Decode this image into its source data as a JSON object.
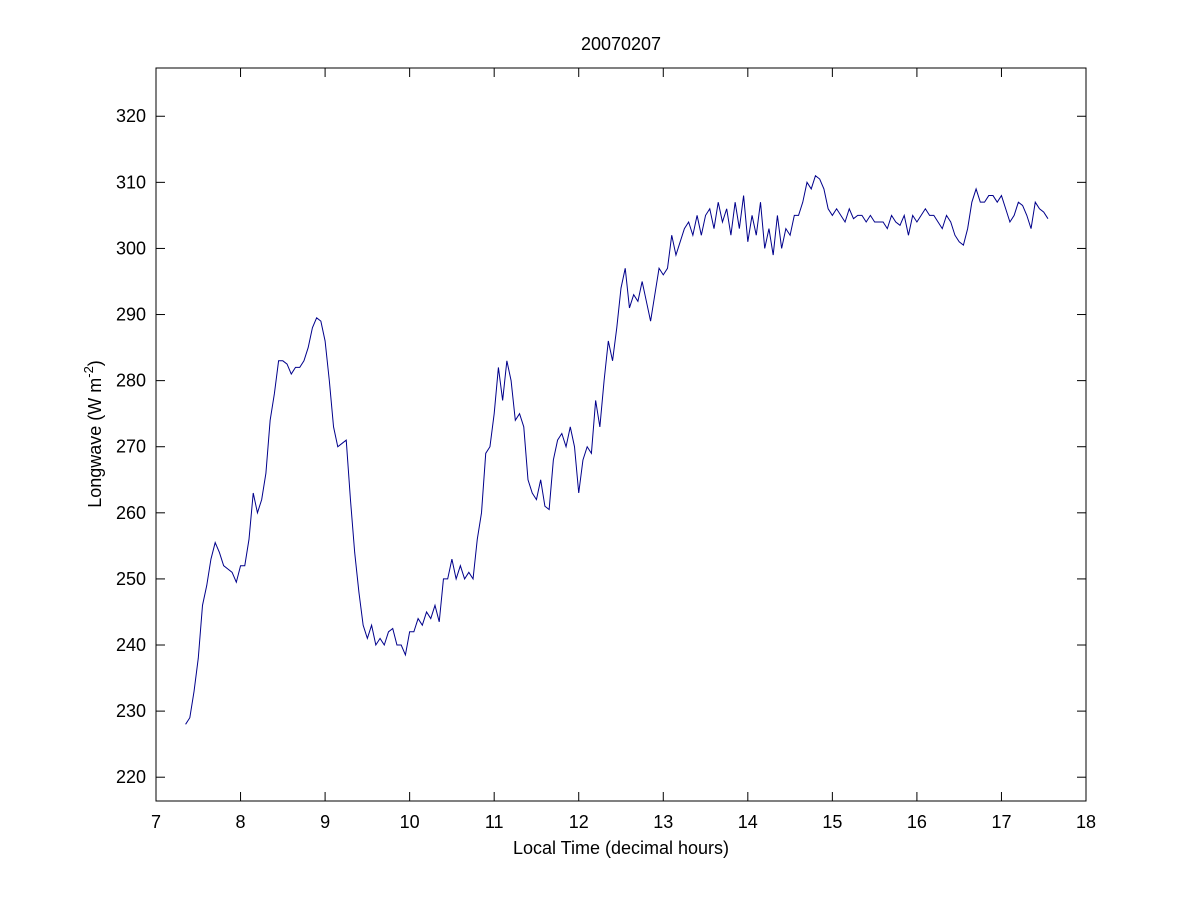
{
  "chart_data": {
    "type": "line",
    "title": "20070207",
    "xlabel": "Local Time (decimal hours)",
    "ylabel": {
      "text": "Longwave (W m",
      "superscript": "-2",
      "suffix": ")"
    },
    "color": "#00008b",
    "xlim": [
      7,
      18
    ],
    "xticks": [
      7,
      8,
      9,
      10,
      11,
      12,
      13,
      14,
      15,
      16,
      17,
      18
    ],
    "ylim": [
      216.4,
      327.3
    ],
    "yticks": [
      220,
      230,
      240,
      250,
      260,
      270,
      280,
      290,
      300,
      310,
      320
    ],
    "grid": false,
    "x": [
      7.35,
      7.4,
      7.45,
      7.5,
      7.55,
      7.6,
      7.65,
      7.7,
      7.75,
      7.8,
      7.85,
      7.9,
      7.95,
      8.0,
      8.05,
      8.1,
      8.15,
      8.2,
      8.25,
      8.3,
      8.35,
      8.4,
      8.45,
      8.5,
      8.55,
      8.6,
      8.65,
      8.7,
      8.75,
      8.8,
      8.85,
      8.9,
      8.95,
      9.0,
      9.05,
      9.1,
      9.15,
      9.2,
      9.25,
      9.3,
      9.35,
      9.4,
      9.45,
      9.5,
      9.55,
      9.6,
      9.65,
      9.7,
      9.75,
      9.8,
      9.85,
      9.9,
      9.95,
      10.0,
      10.05,
      10.1,
      10.15,
      10.2,
      10.25,
      10.3,
      10.35,
      10.4,
      10.45,
      10.5,
      10.55,
      10.6,
      10.65,
      10.7,
      10.75,
      10.8,
      10.85,
      10.9,
      10.95,
      11.0,
      11.05,
      11.1,
      11.15,
      11.2,
      11.25,
      11.3,
      11.35,
      11.4,
      11.45,
      11.5,
      11.55,
      11.6,
      11.65,
      11.7,
      11.75,
      11.8,
      11.85,
      11.9,
      11.95,
      12.0,
      12.05,
      12.1,
      12.15,
      12.2,
      12.25,
      12.3,
      12.35,
      12.4,
      12.45,
      12.5,
      12.55,
      12.6,
      12.65,
      12.7,
      12.75,
      12.8,
      12.85,
      12.9,
      12.95,
      13.0,
      13.05,
      13.1,
      13.15,
      13.2,
      13.25,
      13.3,
      13.35,
      13.4,
      13.45,
      13.5,
      13.55,
      13.6,
      13.65,
      13.7,
      13.75,
      13.8,
      13.85,
      13.9,
      13.95,
      14.0,
      14.05,
      14.1,
      14.15,
      14.2,
      14.25,
      14.3,
      14.35,
      14.4,
      14.45,
      14.5,
      14.55,
      14.6,
      14.65,
      14.7,
      14.75,
      14.8,
      14.85,
      14.9,
      14.95,
      15.0,
      15.05,
      15.1,
      15.15,
      15.2,
      15.25,
      15.3,
      15.35,
      15.4,
      15.45,
      15.5,
      15.55,
      15.6,
      15.65,
      15.7,
      15.75,
      15.8,
      15.85,
      15.9,
      15.95,
      16.0,
      16.05,
      16.1,
      16.15,
      16.2,
      16.25,
      16.3,
      16.35,
      16.4,
      16.45,
      16.5,
      16.55,
      16.6,
      16.65,
      16.7,
      16.75,
      16.8,
      16.85,
      16.9,
      16.95,
      17.0,
      17.05,
      17.1,
      17.15,
      17.2,
      17.25,
      17.3,
      17.35,
      17.4,
      17.45,
      17.5,
      17.55
    ],
    "values": [
      228,
      229,
      233,
      238,
      246,
      249,
      253,
      255.5,
      254,
      252,
      251.5,
      251,
      249.5,
      252,
      252,
      256,
      263,
      260,
      262,
      266,
      274,
      278,
      283,
      283,
      282.5,
      281,
      282,
      282,
      283,
      285,
      288,
      289.5,
      289,
      286,
      280,
      273,
      270,
      270.5,
      271,
      262,
      254,
      248,
      243,
      241,
      243,
      240,
      241,
      240,
      242,
      242.5,
      240,
      240,
      238.5,
      242,
      242,
      244,
      243,
      245,
      244,
      246,
      243.5,
      250,
      250,
      253,
      250,
      252,
      250,
      251,
      250,
      256,
      260,
      269,
      270,
      275,
      282,
      277,
      283,
      280,
      274,
      275,
      273,
      265,
      263,
      262,
      265,
      261,
      260.5,
      268,
      271,
      272,
      270,
      273,
      270,
      263,
      268,
      270,
      269,
      277,
      273,
      280,
      286,
      283,
      288,
      294,
      297,
      291,
      293,
      292,
      295,
      292,
      289,
      293,
      297,
      296,
      297,
      302,
      299,
      301,
      303,
      304,
      302,
      305,
      302,
      305,
      306,
      303,
      307,
      304,
      306,
      302,
      307,
      303,
      308,
      301,
      305,
      302,
      307,
      300,
      303,
      299,
      305,
      300,
      303,
      302,
      305,
      305,
      307,
      310,
      309,
      311,
      310.5,
      309,
      306,
      305,
      306,
      305,
      304,
      306,
      304.5,
      305,
      305,
      304,
      305,
      304,
      304,
      304,
      303,
      305,
      304,
      303.5,
      305,
      302,
      305,
      304,
      305,
      306,
      305,
      305,
      304,
      303,
      305,
      304,
      302,
      301,
      300.5,
      303,
      307,
      309,
      307,
      307,
      308,
      308,
      307,
      308,
      306,
      304,
      305,
      307,
      306.5,
      305,
      303,
      307,
      306,
      305.5,
      304.5
    ]
  }
}
